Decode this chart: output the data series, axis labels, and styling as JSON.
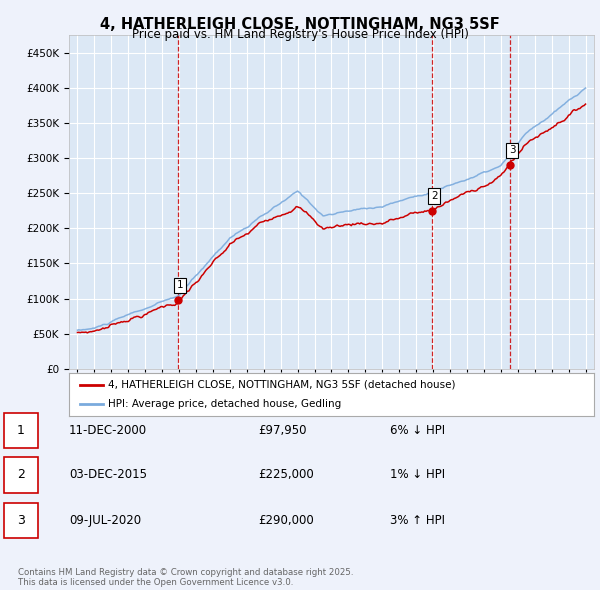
{
  "title": "4, HATHERLEIGH CLOSE, NOTTINGHAM, NG3 5SF",
  "subtitle": "Price paid vs. HM Land Registry's House Price Index (HPI)",
  "bg_color": "#eef2fb",
  "plot_bg_color": "#dce8f5",
  "legend_label_red": "4, HATHERLEIGH CLOSE, NOTTINGHAM, NG3 5SF (detached house)",
  "legend_label_blue": "HPI: Average price, detached house, Gedling",
  "footer": "Contains HM Land Registry data © Crown copyright and database right 2025.\nThis data is licensed under the Open Government Licence v3.0.",
  "transactions": [
    {
      "num": 1,
      "date": "11-DEC-2000",
      "price": "£97,950",
      "pct": "6% ↓ HPI",
      "year": 2000.92
    },
    {
      "num": 2,
      "date": "03-DEC-2015",
      "price": "£225,000",
      "pct": "1% ↓ HPI",
      "year": 2015.92
    },
    {
      "num": 3,
      "date": "09-JUL-2020",
      "price": "£290,000",
      "pct": "3% ↑ HPI",
      "year": 2020.52
    }
  ],
  "transaction_values": [
    97950,
    225000,
    290000
  ],
  "transaction_years": [
    2000.92,
    2015.92,
    2020.52
  ],
  "ylim": [
    0,
    475000
  ],
  "yticks": [
    0,
    50000,
    100000,
    150000,
    200000,
    250000,
    300000,
    350000,
    400000,
    450000
  ],
  "xmin": 1994.5,
  "xmax": 2025.5,
  "grid_color": "#ffffff",
  "red_color": "#cc0000",
  "blue_color": "#7aaadd"
}
